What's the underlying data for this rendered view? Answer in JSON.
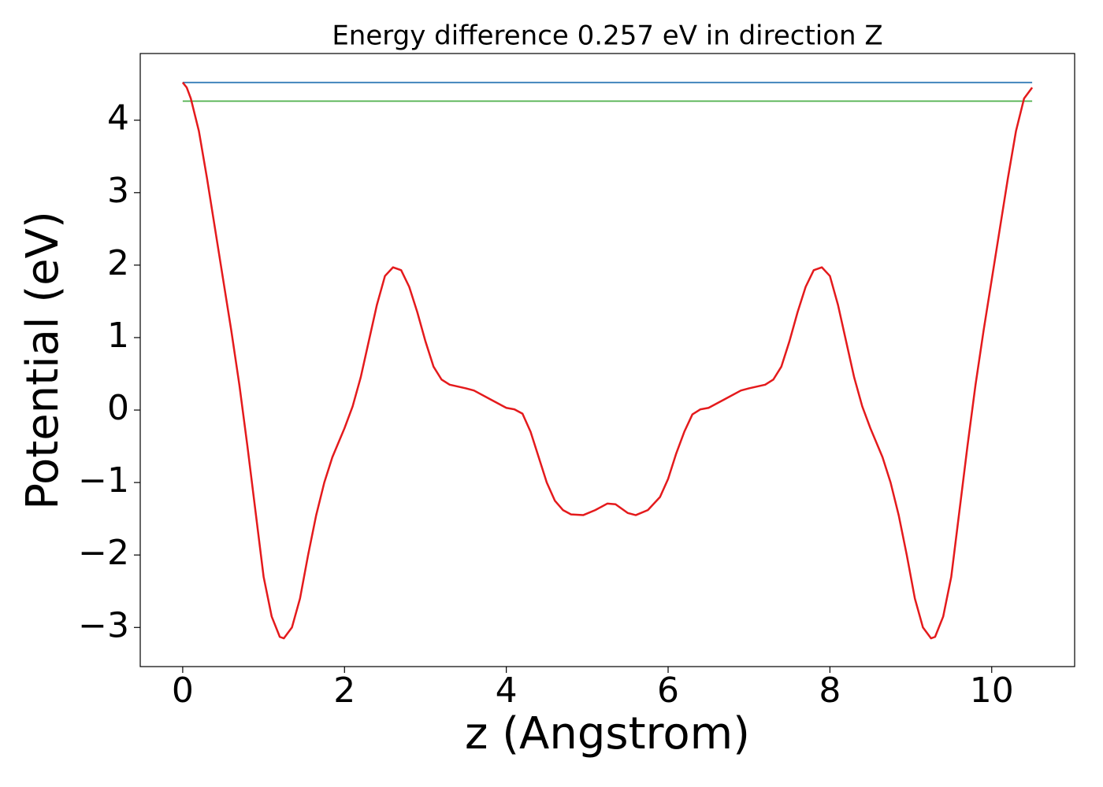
{
  "chart_data": {
    "type": "line",
    "title": "Energy difference 0.257 eV in direction Z",
    "x_label": "z (Angstrom)",
    "y_label": "Potential (eV)",
    "xlim": [
      -0.525,
      11.025
    ],
    "ylim": [
      -3.54,
      4.92
    ],
    "xticks": [
      0,
      2,
      4,
      6,
      8,
      10
    ],
    "yticks": [
      {
        "value": -3,
        "label": "−3"
      },
      {
        "value": -2,
        "label": "−2"
      },
      {
        "value": -1,
        "label": "−1"
      },
      0,
      1,
      2,
      3,
      4
    ],
    "grid": false,
    "series": [
      {
        "color": "#e41a1c",
        "x": [
          0,
          0.05,
          0.1,
          0.2,
          0.3,
          0.4,
          0.5,
          0.6,
          0.7,
          0.8,
          0.9,
          1.0,
          1.1,
          1.2,
          1.25,
          1.35,
          1.45,
          1.55,
          1.65,
          1.75,
          1.85,
          2.0,
          2.1,
          2.2,
          2.3,
          2.4,
          2.5,
          2.6,
          2.7,
          2.8,
          2.9,
          3.0,
          3.1,
          3.2,
          3.3,
          3.5,
          3.6,
          3.8,
          4.0,
          4.1,
          4.2,
          4.3,
          4.4,
          4.5,
          4.6,
          4.7,
          4.8,
          4.95,
          5.1,
          5.25,
          5.35,
          5.5,
          5.6,
          5.75,
          5.9,
          6.0,
          6.1,
          6.2,
          6.3,
          6.4,
          6.5,
          6.7,
          6.9,
          7.0,
          7.2,
          7.3,
          7.4,
          7.5,
          7.6,
          7.7,
          7.8,
          7.9,
          8.0,
          8.1,
          8.2,
          8.3,
          8.4,
          8.5,
          8.65,
          8.75,
          8.85,
          8.95,
          9.05,
          9.15,
          9.25,
          9.3,
          9.4,
          9.5,
          9.6,
          9.7,
          9.8,
          9.9,
          10.0,
          10.1,
          10.2,
          10.3,
          10.4,
          10.5
        ],
        "values": [
          4.52,
          4.45,
          4.3,
          3.85,
          3.2,
          2.5,
          1.8,
          1.1,
          0.35,
          -0.5,
          -1.4,
          -2.3,
          -2.85,
          -3.13,
          -3.15,
          -3.0,
          -2.6,
          -2.0,
          -1.45,
          -1.0,
          -0.65,
          -0.25,
          0.05,
          0.45,
          0.95,
          1.45,
          1.85,
          1.97,
          1.93,
          1.7,
          1.35,
          0.95,
          0.6,
          0.42,
          0.35,
          0.3,
          0.27,
          0.15,
          0.03,
          0.01,
          -0.05,
          -0.3,
          -0.65,
          -1.0,
          -1.25,
          -1.38,
          -1.44,
          -1.45,
          -1.38,
          -1.29,
          -1.3,
          -1.42,
          -1.45,
          -1.38,
          -1.2,
          -0.95,
          -0.6,
          -0.3,
          -0.06,
          0.01,
          0.03,
          0.15,
          0.27,
          0.3,
          0.35,
          0.42,
          0.6,
          0.95,
          1.35,
          1.7,
          1.93,
          1.97,
          1.85,
          1.45,
          0.95,
          0.45,
          0.05,
          -0.25,
          -0.65,
          -1.0,
          -1.45,
          -2.0,
          -2.6,
          -3.0,
          -3.15,
          -3.13,
          -2.85,
          -2.3,
          -1.4,
          -0.5,
          0.35,
          1.1,
          1.8,
          2.5,
          3.2,
          3.85,
          4.3,
          4.45
        ]
      },
      {
        "color": "#377eb8",
        "x": [
          0,
          10.5
        ],
        "values": [
          4.52,
          4.52
        ]
      },
      {
        "color": "#4daf4a",
        "x": [
          0,
          10.5
        ],
        "values": [
          4.263,
          4.263
        ]
      }
    ]
  }
}
